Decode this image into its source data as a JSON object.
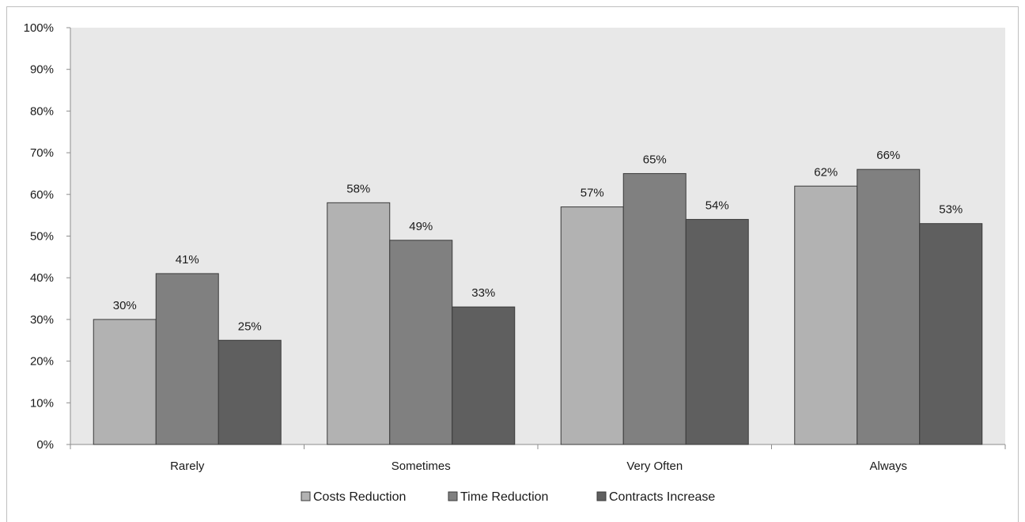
{
  "chart_data": {
    "type": "bar",
    "categories": [
      "Rarely",
      "Sometimes",
      "Very Often",
      "Always"
    ],
    "series": [
      {
        "name": "Costs Reduction",
        "values": [
          30,
          58,
          57,
          62
        ],
        "labels": [
          "30%",
          "58%",
          "57%",
          "62%"
        ],
        "color": "#b2b2b2"
      },
      {
        "name": "Time Reduction",
        "values": [
          41,
          49,
          65,
          66
        ],
        "labels": [
          "41%",
          "49%",
          "65%",
          "66%"
        ],
        "color": "#808080"
      },
      {
        "name": "Contracts Increase",
        "values": [
          25,
          33,
          54,
          53
        ],
        "labels": [
          "25%",
          "33%",
          "54%",
          "53%"
        ],
        "color": "#5f5f5f"
      }
    ],
    "ylim": [
      0,
      100
    ],
    "yticks": [
      "0%",
      "10%",
      "20%",
      "30%",
      "40%",
      "50%",
      "60%",
      "70%",
      "80%",
      "90%",
      "100%"
    ],
    "grid": false,
    "plot_background": "#e8e8e8",
    "legend_position": "bottom",
    "title": "",
    "xlabel": "",
    "ylabel": ""
  }
}
